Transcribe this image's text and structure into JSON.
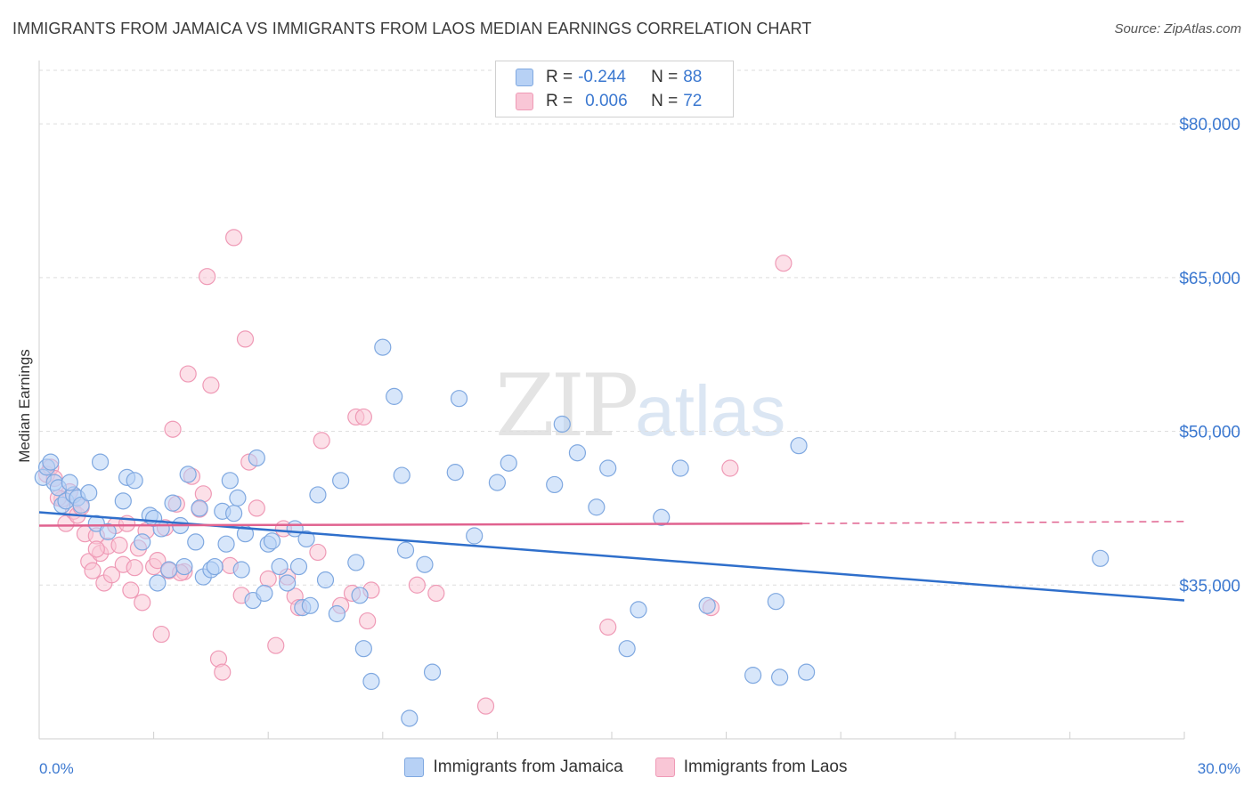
{
  "title": "IMMIGRANTS FROM JAMAICA VS IMMIGRANTS FROM LAOS MEDIAN EARNINGS CORRELATION CHART",
  "source": "Source: ZipAtlas.com",
  "watermark": {
    "zip": "ZIP",
    "atlas": "atlas"
  },
  "legend": {
    "jamaica": {
      "r_label": "R =",
      "r_value": "-0.244",
      "n_label": "N =",
      "n_value": "88"
    },
    "laos": {
      "r_label": "R =",
      "r_value": "0.006",
      "n_label": "N =",
      "n_value": "72"
    }
  },
  "colors": {
    "jamaica_fill": "#b7d1f5",
    "jamaica_stroke": "#7fa8e0",
    "jamaica_line": "#2f6fcb",
    "laos_fill": "#f9c6d6",
    "laos_stroke": "#ef9ab6",
    "laos_line": "#e0628f",
    "tick_label": "#3b78d0",
    "grid": "#dedede"
  },
  "chart_data": {
    "type": "scatter",
    "title": "IMMIGRANTS FROM JAMAICA VS IMMIGRANTS FROM LAOS MEDIAN EARNINGS CORRELATION CHART",
    "xlabel": "",
    "ylabel": "Median Earnings",
    "xlim": [
      0,
      30
    ],
    "ylim": [
      20000,
      86000
    ],
    "x_tick_labels": [
      "0.0%",
      "30.0%"
    ],
    "y_ticks": [
      35000,
      50000,
      65000,
      80000
    ],
    "y_tick_labels": [
      "$35,000",
      "$50,000",
      "$65,000",
      "$80,000"
    ],
    "grid": true,
    "legend_position": "top-center",
    "series": [
      {
        "name": "Immigrants from Jamaica",
        "trend": {
          "x": [
            0,
            30
          ],
          "y": [
            42100,
            33500
          ]
        },
        "points": [
          [
            0.1,
            45500
          ],
          [
            0.2,
            46500
          ],
          [
            0.3,
            47000
          ],
          [
            0.4,
            45000
          ],
          [
            0.5,
            44500
          ],
          [
            0.6,
            42800
          ],
          [
            0.7,
            43200
          ],
          [
            0.9,
            43800
          ],
          [
            0.8,
            45000
          ],
          [
            1.0,
            43500
          ],
          [
            1.1,
            42800
          ],
          [
            1.3,
            44000
          ],
          [
            1.5,
            41000
          ],
          [
            1.6,
            47000
          ],
          [
            1.8,
            40200
          ],
          [
            2.2,
            43200
          ],
          [
            2.3,
            45500
          ],
          [
            2.5,
            45200
          ],
          [
            2.7,
            39200
          ],
          [
            2.9,
            41800
          ],
          [
            3.0,
            41500
          ],
          [
            3.1,
            35200
          ],
          [
            3.2,
            40500
          ],
          [
            3.4,
            36500
          ],
          [
            3.5,
            43000
          ],
          [
            3.7,
            40800
          ],
          [
            3.8,
            36800
          ],
          [
            3.9,
            45800
          ],
          [
            4.1,
            39200
          ],
          [
            4.2,
            42500
          ],
          [
            4.3,
            35800
          ],
          [
            4.5,
            36500
          ],
          [
            4.6,
            36800
          ],
          [
            4.8,
            42200
          ],
          [
            4.9,
            39000
          ],
          [
            5.0,
            45200
          ],
          [
            5.1,
            42000
          ],
          [
            5.3,
            36500
          ],
          [
            5.4,
            40000
          ],
          [
            5.6,
            33500
          ],
          [
            5.7,
            47400
          ],
          [
            5.9,
            34200
          ],
          [
            6.0,
            39000
          ],
          [
            6.1,
            39300
          ],
          [
            6.3,
            36800
          ],
          [
            6.5,
            35200
          ],
          [
            6.7,
            40500
          ],
          [
            6.8,
            36800
          ],
          [
            6.9,
            32800
          ],
          [
            7.0,
            39500
          ],
          [
            7.1,
            33000
          ],
          [
            7.3,
            43800
          ],
          [
            7.5,
            35500
          ],
          [
            7.8,
            32200
          ],
          [
            7.9,
            45200
          ],
          [
            8.3,
            37200
          ],
          [
            8.4,
            34000
          ],
          [
            8.5,
            28800
          ],
          [
            8.7,
            25600
          ],
          [
            9.0,
            58200
          ],
          [
            9.3,
            53400
          ],
          [
            9.5,
            45700
          ],
          [
            9.6,
            38400
          ],
          [
            9.7,
            22000
          ],
          [
            10.1,
            37000
          ],
          [
            10.3,
            26500
          ],
          [
            10.9,
            46000
          ],
          [
            11.0,
            53200
          ],
          [
            12.0,
            45000
          ],
          [
            12.3,
            46900
          ],
          [
            13.5,
            44800
          ],
          [
            13.7,
            50700
          ],
          [
            14.1,
            47900
          ],
          [
            14.6,
            42600
          ],
          [
            14.9,
            46400
          ],
          [
            15.4,
            28800
          ],
          [
            15.7,
            32600
          ],
          [
            16.3,
            41600
          ],
          [
            16.8,
            46400
          ],
          [
            17.5,
            33000
          ],
          [
            18.7,
            26200
          ],
          [
            19.3,
            33400
          ],
          [
            19.4,
            26000
          ],
          [
            19.9,
            48600
          ],
          [
            20.1,
            26500
          ],
          [
            27.8,
            37600
          ],
          [
            11.4,
            39800
          ],
          [
            5.2,
            43500
          ]
        ]
      },
      {
        "name": "Immigrants from Laos",
        "trend": {
          "x": [
            0,
            20
          ],
          "y": [
            40800,
            41000
          ]
        },
        "trend_dashed": {
          "x": [
            20,
            30
          ],
          "y": [
            41000,
            41200
          ]
        },
        "points": [
          [
            0.2,
            45800
          ],
          [
            0.3,
            46500
          ],
          [
            0.4,
            45400
          ],
          [
            0.6,
            43400
          ],
          [
            0.7,
            41000
          ],
          [
            0.8,
            44100
          ],
          [
            0.9,
            42200
          ],
          [
            1.0,
            41800
          ],
          [
            1.1,
            42600
          ],
          [
            1.2,
            40000
          ],
          [
            1.3,
            37300
          ],
          [
            1.4,
            36400
          ],
          [
            1.5,
            39800
          ],
          [
            1.6,
            38100
          ],
          [
            1.7,
            35200
          ],
          [
            1.8,
            38800
          ],
          [
            1.9,
            36000
          ],
          [
            2.0,
            40800
          ],
          [
            2.1,
            38900
          ],
          [
            2.2,
            37000
          ],
          [
            2.4,
            34500
          ],
          [
            2.5,
            36700
          ],
          [
            2.6,
            38600
          ],
          [
            2.7,
            33300
          ],
          [
            2.8,
            40300
          ],
          [
            3.0,
            36800
          ],
          [
            3.1,
            37400
          ],
          [
            3.2,
            30200
          ],
          [
            3.3,
            40600
          ],
          [
            3.4,
            36400
          ],
          [
            3.5,
            50200
          ],
          [
            3.6,
            42900
          ],
          [
            3.8,
            36300
          ],
          [
            3.9,
            55600
          ],
          [
            4.0,
            45600
          ],
          [
            4.2,
            42400
          ],
          [
            4.3,
            43900
          ],
          [
            4.4,
            65100
          ],
          [
            4.5,
            54500
          ],
          [
            4.7,
            27800
          ],
          [
            4.8,
            26500
          ],
          [
            5.0,
            36900
          ],
          [
            5.1,
            68900
          ],
          [
            5.3,
            34000
          ],
          [
            5.4,
            59000
          ],
          [
            5.5,
            47000
          ],
          [
            5.7,
            42500
          ],
          [
            6.0,
            35600
          ],
          [
            6.2,
            29100
          ],
          [
            6.4,
            40500
          ],
          [
            6.7,
            33900
          ],
          [
            6.8,
            32800
          ],
          [
            7.3,
            38200
          ],
          [
            7.4,
            49100
          ],
          [
            7.9,
            33000
          ],
          [
            8.2,
            34200
          ],
          [
            8.3,
            51400
          ],
          [
            8.5,
            51400
          ],
          [
            8.6,
            31500
          ],
          [
            8.7,
            34500
          ],
          [
            9.9,
            35000
          ],
          [
            10.4,
            34200
          ],
          [
            11.7,
            23200
          ],
          [
            14.9,
            30900
          ],
          [
            17.6,
            32800
          ],
          [
            18.1,
            46400
          ],
          [
            19.5,
            66400
          ],
          [
            3.7,
            36200
          ],
          [
            6.5,
            35800
          ],
          [
            2.3,
            41000
          ],
          [
            1.5,
            38500
          ],
          [
            0.5,
            43500
          ]
        ]
      }
    ]
  }
}
